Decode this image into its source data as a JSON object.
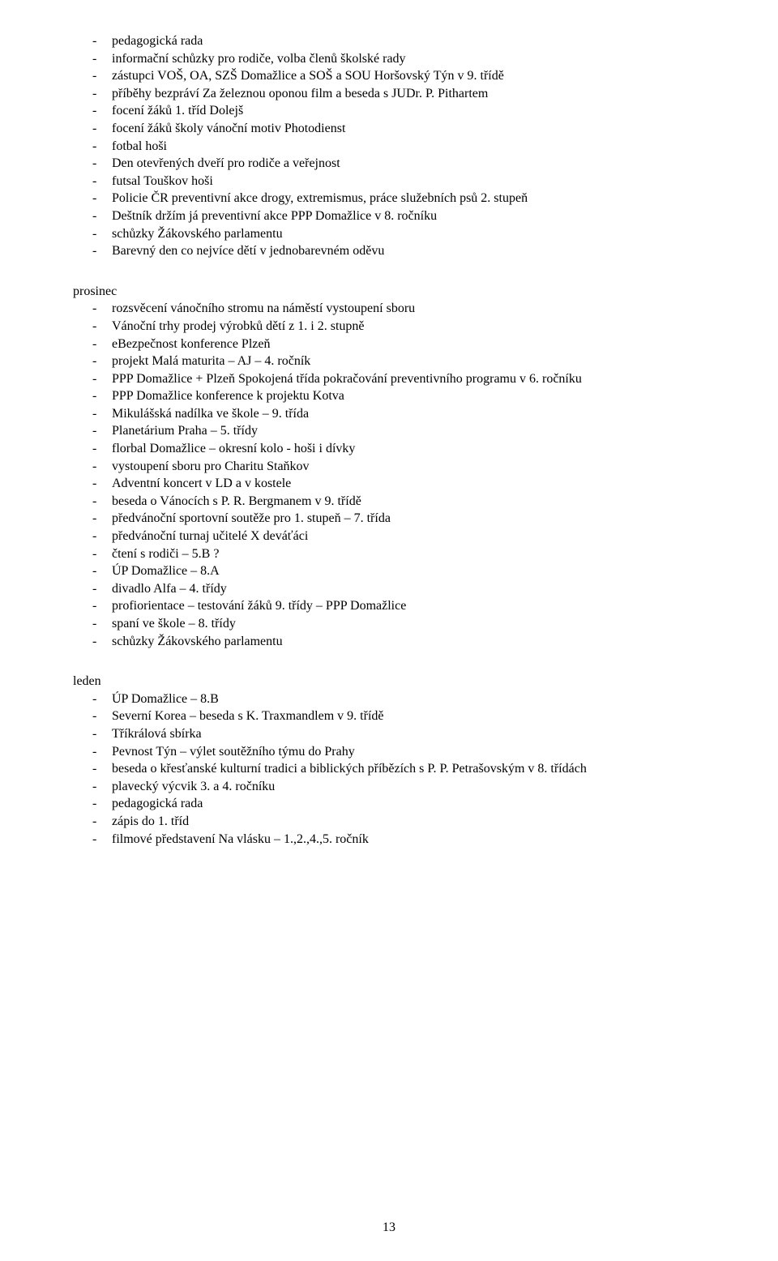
{
  "top_block": [
    "pedagogická rada",
    "informační schůzky pro rodiče, volba členů školské rady",
    "zástupci VOŠ, OA, SZŠ Domažlice a SOŠ a SOU Horšovský Týn v 9. třídě",
    "příběhy bezpráví Za železnou oponou film a beseda s JUDr. P. Pithartem",
    "focení žáků 1. tříd Dolejš",
    "focení žáků školy vánoční motiv Photodienst",
    "fotbal hoši",
    "Den otevřených dveří pro rodiče a veřejnost",
    "futsal Touškov hoši",
    "Policie ČR preventivní akce drogy, extremismus, práce služebních psů 2. stupeň",
    "Deštník držím já preventivní akce PPP Domažlice v 8. ročníku",
    "schůzky Žákovského parlamentu",
    "Barevný den co nejvíce dětí v jednobarevném oděvu"
  ],
  "sections": [
    {
      "title": "prosinec",
      "items": [
        "rozsvěcení vánočního stromu na náměstí vystoupení sboru",
        "Vánoční trhy prodej výrobků dětí z 1. i 2. stupně",
        "eBezpečnost konference Plzeň",
        "projekt Malá maturita – AJ – 4. ročník",
        "PPP Domažlice + Plzeň Spokojená třída pokračování preventivního programu v 6. ročníku",
        "PPP Domažlice konference k projektu Kotva",
        "Mikulášská nadílka ve škole – 9. třída",
        "Planetárium Praha – 5. třídy",
        "florbal Domažlice – okresní kolo - hoši i dívky",
        "vystoupení sboru pro Charitu Staňkov",
        "Adventní koncert v LD a v kostele",
        "beseda o Vánocích s P. R. Bergmanem v 9. třídě",
        "předvánoční sportovní soutěže pro 1. stupeň – 7. třída",
        "předvánoční turnaj učitelé X deváťáci",
        "čtení s rodiči – 5.B ?",
        "ÚP Domažlice – 8.A",
        "divadlo Alfa – 4. třídy",
        "profiorientace – testování žáků 9. třídy – PPP Domažlice",
        "spaní ve škole – 8. třídy",
        "schůzky Žákovského parlamentu"
      ]
    },
    {
      "title": "leden",
      "items": [
        "ÚP Domažlice – 8.B",
        "Severní Korea – beseda s K. Traxmandlem v 9. třídě",
        "Tříkrálová sbírka",
        "Pevnost Týn – výlet soutěžního týmu do Prahy",
        "beseda o křesťanské kulturní tradici a biblických příbězích s P. P. Petrašovským v 8. třídách",
        "plavecký výcvik 3. a 4. ročníku",
        "pedagogická rada",
        "zápis do 1. tříd",
        "filmové představení Na vlásku – 1.,2.,4.,5. ročník"
      ]
    }
  ],
  "page_number": "13"
}
